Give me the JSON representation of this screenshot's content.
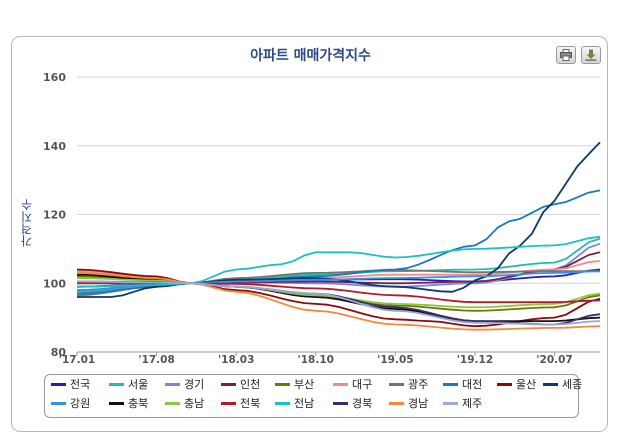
{
  "toolbar": {
    "print_icon": "printer-icon",
    "download_icon": "download-icon"
  },
  "chart_data": {
    "type": "line",
    "title": "아파트 매매가격지수",
    "ylabel": "가격지수",
    "xlabel": "",
    "ylim": [
      80,
      160
    ],
    "yticks": [
      80,
      100,
      120,
      140,
      160
    ],
    "x_tick_labels": [
      "'17.01",
      "'17.08",
      "'18.03",
      "'18.10",
      "'19.05",
      "'19.12",
      "'20.07"
    ],
    "x_tick_index": [
      0,
      7,
      14,
      21,
      28,
      35,
      42
    ],
    "x_count": 47,
    "x_start": "2017-01",
    "grid": true,
    "legend_placement": "bottom",
    "series": [
      {
        "name": "전국",
        "color": "#1f1fc4",
        "anchors": [
          [
            0,
            99
          ],
          [
            7,
            99.7
          ],
          [
            10,
            100
          ],
          [
            14,
            100.5
          ],
          [
            21,
            101
          ],
          [
            28,
            101.2
          ],
          [
            35,
            100.5
          ],
          [
            42,
            102
          ],
          [
            46,
            104
          ]
        ]
      },
      {
        "name": "서울",
        "color": "#1fbfa5",
        "anchors": [
          [
            0,
            97.5
          ],
          [
            7,
            99.5
          ],
          [
            10,
            100
          ],
          [
            14,
            101
          ],
          [
            21,
            102.5
          ],
          [
            28,
            103.5
          ],
          [
            35,
            104
          ],
          [
            42,
            106
          ],
          [
            46,
            113
          ]
        ]
      },
      {
        "name": "경기",
        "color": "#7b86d6",
        "anchors": [
          [
            0,
            98
          ],
          [
            7,
            99.5
          ],
          [
            10,
            100
          ],
          [
            14,
            100.3
          ],
          [
            21,
            100
          ],
          [
            28,
            99
          ],
          [
            35,
            100
          ],
          [
            42,
            104
          ],
          [
            46,
            111.5
          ]
        ]
      },
      {
        "name": "인천",
        "color": "#7a1f4f",
        "anchors": [
          [
            0,
            99
          ],
          [
            7,
            99.5
          ],
          [
            10,
            100
          ],
          [
            14,
            100.2
          ],
          [
            21,
            100.5
          ],
          [
            28,
            100
          ],
          [
            35,
            100.5
          ],
          [
            42,
            104
          ],
          [
            46,
            109
          ]
        ]
      },
      {
        "name": "부산",
        "color": "#6b7a00",
        "anchors": [
          [
            0,
            102
          ],
          [
            7,
            101
          ],
          [
            10,
            100
          ],
          [
            14,
            99
          ],
          [
            21,
            96
          ],
          [
            28,
            93.5
          ],
          [
            35,
            92
          ],
          [
            42,
            93
          ],
          [
            46,
            96.5
          ]
        ]
      },
      {
        "name": "대구",
        "color": "#f28b82",
        "anchors": [
          [
            0,
            103.5
          ],
          [
            7,
            101.5
          ],
          [
            10,
            100
          ],
          [
            14,
            100.5
          ],
          [
            21,
            101.5
          ],
          [
            28,
            102.5
          ],
          [
            35,
            102.5
          ],
          [
            42,
            104
          ],
          [
            46,
            106.5
          ]
        ]
      },
      {
        "name": "광주",
        "color": "#737373",
        "anchors": [
          [
            0,
            96.5
          ],
          [
            7,
            99
          ],
          [
            10,
            100
          ],
          [
            14,
            101.5
          ],
          [
            21,
            103
          ],
          [
            28,
            103.8
          ],
          [
            35,
            103.2
          ],
          [
            42,
            103.5
          ],
          [
            46,
            103.5
          ]
        ]
      },
      {
        "name": "대전",
        "color": "#1d78c2",
        "anchors": [
          [
            0,
            97
          ],
          [
            7,
            99
          ],
          [
            10,
            100
          ],
          [
            14,
            100.5
          ],
          [
            21,
            102
          ],
          [
            28,
            104
          ],
          [
            35,
            111
          ],
          [
            38,
            118
          ],
          [
            42,
            123
          ],
          [
            46,
            127
          ]
        ]
      },
      {
        "name": "울산",
        "color": "#8b0a0a",
        "anchors": [
          [
            0,
            104
          ],
          [
            7,
            102
          ],
          [
            10,
            100
          ],
          [
            14,
            98
          ],
          [
            21,
            94
          ],
          [
            28,
            89.5
          ],
          [
            31,
            89
          ],
          [
            35,
            87.5
          ],
          [
            42,
            90
          ],
          [
            46,
            95.5
          ]
        ]
      },
      {
        "name": "세종",
        "color": "#0a3a6b",
        "anchors": [
          [
            0,
            96
          ],
          [
            3,
            96
          ],
          [
            7,
            99
          ],
          [
            10,
            100
          ],
          [
            14,
            101
          ],
          [
            21,
            101.5
          ],
          [
            28,
            99
          ],
          [
            33,
            97.5
          ],
          [
            36,
            102
          ],
          [
            39,
            111
          ],
          [
            42,
            124
          ],
          [
            44,
            134
          ],
          [
            46,
            141
          ]
        ]
      },
      {
        "name": "강원",
        "color": "#3a8ee6",
        "anchors": [
          [
            0,
            98
          ],
          [
            7,
            99.5
          ],
          [
            10,
            100
          ],
          [
            14,
            100.5
          ],
          [
            21,
            101
          ],
          [
            28,
            101.5
          ],
          [
            35,
            102
          ],
          [
            42,
            103
          ],
          [
            46,
            103.5
          ]
        ]
      },
      {
        "name": "충북",
        "color": "#111111",
        "anchors": [
          [
            0,
            102.5
          ],
          [
            7,
            101
          ],
          [
            10,
            100
          ],
          [
            14,
            99
          ],
          [
            21,
            96
          ],
          [
            28,
            92.5
          ],
          [
            35,
            89
          ],
          [
            42,
            89
          ],
          [
            46,
            90
          ]
        ]
      },
      {
        "name": "충남",
        "color": "#8cc63f",
        "anchors": [
          [
            0,
            101.5
          ],
          [
            7,
            100.8
          ],
          [
            10,
            100
          ],
          [
            14,
            99
          ],
          [
            21,
            96.5
          ],
          [
            28,
            94
          ],
          [
            35,
            93
          ],
          [
            42,
            94
          ],
          [
            46,
            97
          ]
        ]
      },
      {
        "name": "전북",
        "color": "#b01c2e",
        "anchors": [
          [
            0,
            100
          ],
          [
            7,
            100
          ],
          [
            10,
            100
          ],
          [
            14,
            99.8
          ],
          [
            21,
            98.5
          ],
          [
            28,
            96.5
          ],
          [
            35,
            94.5
          ],
          [
            42,
            94.5
          ],
          [
            46,
            95
          ]
        ]
      },
      {
        "name": "전남",
        "color": "#1cc0c0",
        "anchors": [
          [
            0,
            99
          ],
          [
            7,
            99.5
          ],
          [
            10,
            100
          ],
          [
            14,
            104
          ],
          [
            18,
            105.5
          ],
          [
            21,
            109
          ],
          [
            24,
            109
          ],
          [
            28,
            107.5
          ],
          [
            35,
            110
          ],
          [
            42,
            111
          ],
          [
            46,
            113.5
          ]
        ]
      },
      {
        "name": "경북",
        "color": "#3a2d6b",
        "anchors": [
          [
            0,
            100.5
          ],
          [
            7,
            100.3
          ],
          [
            10,
            100
          ],
          [
            14,
            99
          ],
          [
            21,
            97
          ],
          [
            28,
            93
          ],
          [
            35,
            89
          ],
          [
            42,
            88
          ],
          [
            46,
            91
          ]
        ]
      },
      {
        "name": "경남",
        "color": "#f08a3c",
        "anchors": [
          [
            0,
            103
          ],
          [
            7,
            101.5
          ],
          [
            10,
            100
          ],
          [
            14,
            97.5
          ],
          [
            21,
            92
          ],
          [
            28,
            88
          ],
          [
            35,
            86.5
          ],
          [
            42,
            87
          ],
          [
            46,
            87.5
          ]
        ]
      },
      {
        "name": "제주",
        "color": "#9aa8e0",
        "anchors": [
          [
            0,
            100.5
          ],
          [
            7,
            100.2
          ],
          [
            10,
            100
          ],
          [
            14,
            99
          ],
          [
            21,
            97
          ],
          [
            28,
            92
          ],
          [
            35,
            88.5
          ],
          [
            42,
            88
          ],
          [
            46,
            89
          ]
        ]
      }
    ]
  }
}
